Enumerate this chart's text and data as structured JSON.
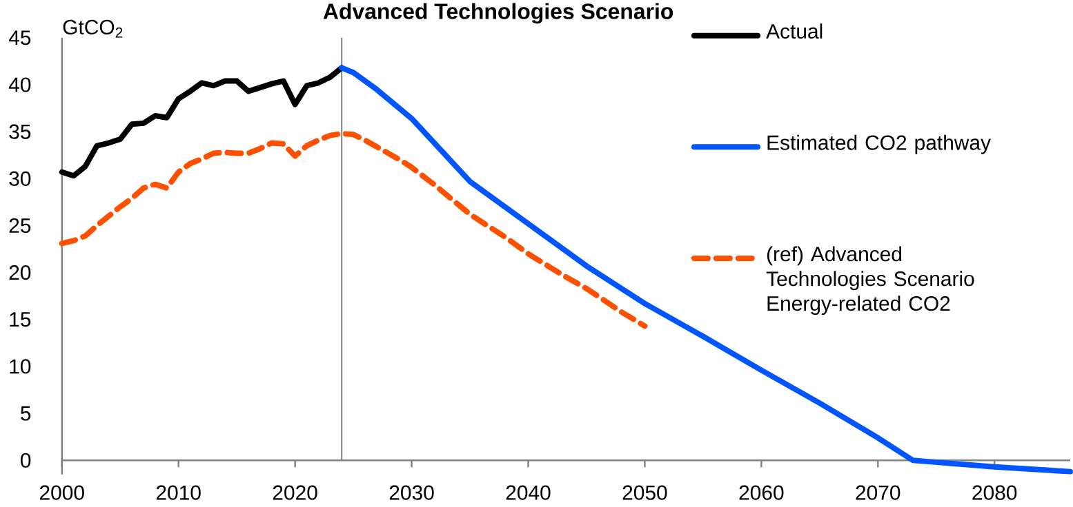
{
  "chart_data": {
    "type": "line",
    "title": "Advanced Technologies Scenario",
    "ylabel": "GtCO$_{2}$",
    "xlim": [
      2000,
      2086.5
    ],
    "ylim": [
      -1.5,
      45
    ],
    "xticks": [
      2000,
      2010,
      2020,
      2030,
      2040,
      2050,
      2060,
      2070,
      2080
    ],
    "yticks": [
      0,
      5,
      10,
      15,
      20,
      25,
      30,
      35,
      40,
      45
    ],
    "legend": "top right",
    "ref_lines": [
      {
        "axis": "x",
        "value": 2024,
        "color": "#808080"
      }
    ],
    "series": [
      {
        "name": "Actual",
        "color": "#000000",
        "line_style": "solid",
        "x": [
          2000,
          2001,
          2002,
          2003,
          2004,
          2005,
          2006,
          2007,
          2008,
          2009,
          2010,
          2011,
          2012,
          2013,
          2014,
          2015,
          2016,
          2017,
          2018,
          2019,
          2020,
          2021,
          2022,
          2023,
          2024
        ],
        "values": [
          30.7,
          30.3,
          31.3,
          33.5,
          33.8,
          34.2,
          35.8,
          35.9,
          36.7,
          36.5,
          38.5,
          39.3,
          40.2,
          39.9,
          40.4,
          40.4,
          39.3,
          39.7,
          40.1,
          40.4,
          37.9,
          39.9,
          40.2,
          40.8,
          41.8
        ]
      },
      {
        "name": "Estimated CO2 pathway",
        "color": "#0055ff",
        "line_style": "solid",
        "x": [
          2024,
          2025,
          2027,
          2030,
          2035,
          2040,
          2045,
          2050,
          2055,
          2060,
          2065,
          2070,
          2073,
          2074,
          2080,
          2086.5
        ],
        "values": [
          41.8,
          41.3,
          39.5,
          36.4,
          29.7,
          25.2,
          20.7,
          16.7,
          13.2,
          9.6,
          6.1,
          2.4,
          0,
          -0.1,
          -0.7,
          -1.2
        ]
      },
      {
        "name": "(ref) Advanced Technologies Scenario Energy-related CO2",
        "color": "#ff5000",
        "line_style": "dashed",
        "x": [
          2000,
          2001,
          2002,
          2003,
          2004,
          2005,
          2006,
          2007,
          2008,
          2009,
          2010,
          2011,
          2012,
          2013,
          2014,
          2015,
          2016,
          2017,
          2018,
          2019,
          2020,
          2021,
          2022,
          2023,
          2024,
          2025,
          2026,
          2027,
          2028,
          2029,
          2030,
          2032,
          2035,
          2038,
          2040,
          2043,
          2045,
          2048,
          2050
        ],
        "values": [
          23.1,
          23.4,
          23.9,
          25.0,
          26.0,
          27.0,
          27.9,
          29.0,
          29.4,
          29.0,
          30.7,
          31.6,
          32.1,
          32.7,
          32.8,
          32.7,
          32.7,
          33.2,
          33.8,
          33.7,
          32.4,
          33.5,
          34.1,
          34.6,
          34.8,
          34.7,
          34.1,
          33.4,
          32.7,
          32.0,
          31.2,
          29.3,
          26.2,
          23.8,
          22.0,
          19.7,
          18.3,
          15.8,
          14.3
        ]
      }
    ]
  }
}
